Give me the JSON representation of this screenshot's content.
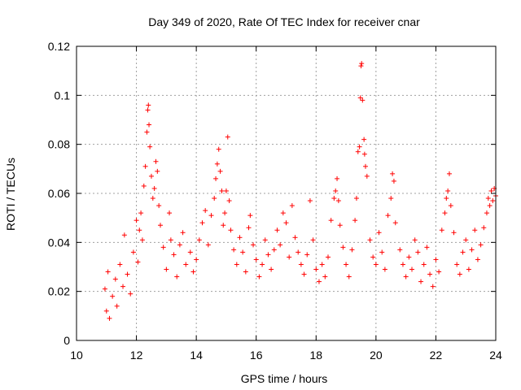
{
  "chart_data": {
    "type": "scatter",
    "title": "Day 349 of 2020, Rate Of TEC Index for receiver cnar",
    "xlabel": "GPS time / hours",
    "ylabel": "ROTI / TECUs",
    "xlim": [
      10,
      24
    ],
    "ylim": [
      0,
      0.12
    ],
    "x_ticks": [
      "10",
      "12",
      "14",
      "16",
      "18",
      "20",
      "22",
      "24"
    ],
    "y_ticks": [
      "0",
      "0.02",
      "0.04",
      "0.06",
      "0.08",
      "0.1",
      "0.12"
    ],
    "grid": true,
    "marker": "+",
    "color": "#ff0000",
    "series": [
      {
        "points": [
          [
            10.95,
            0.021
          ],
          [
            11.0,
            0.012
          ],
          [
            11.05,
            0.028
          ],
          [
            11.1,
            0.009
          ],
          [
            11.2,
            0.018
          ],
          [
            11.3,
            0.025
          ],
          [
            11.35,
            0.014
          ],
          [
            11.45,
            0.031
          ],
          [
            11.55,
            0.022
          ],
          [
            11.6,
            0.043
          ],
          [
            11.7,
            0.027
          ],
          [
            11.8,
            0.019
          ],
          [
            11.9,
            0.036
          ],
          [
            12.0,
            0.049
          ],
          [
            12.05,
            0.032
          ],
          [
            12.1,
            0.045
          ],
          [
            12.15,
            0.052
          ],
          [
            12.2,
            0.041
          ],
          [
            12.25,
            0.063
          ],
          [
            12.3,
            0.071
          ],
          [
            12.35,
            0.085
          ],
          [
            12.38,
            0.094
          ],
          [
            12.4,
            0.096
          ],
          [
            12.42,
            0.088
          ],
          [
            12.45,
            0.079
          ],
          [
            12.5,
            0.067
          ],
          [
            12.55,
            0.058
          ],
          [
            12.6,
            0.062
          ],
          [
            12.65,
            0.073
          ],
          [
            12.7,
            0.069
          ],
          [
            12.75,
            0.055
          ],
          [
            12.8,
            0.047
          ],
          [
            12.9,
            0.038
          ],
          [
            13.0,
            0.029
          ],
          [
            13.1,
            0.052
          ],
          [
            13.15,
            0.041
          ],
          [
            13.25,
            0.035
          ],
          [
            13.35,
            0.026
          ],
          [
            13.45,
            0.039
          ],
          [
            13.55,
            0.044
          ],
          [
            13.65,
            0.031
          ],
          [
            13.8,
            0.036
          ],
          [
            13.9,
            0.028
          ],
          [
            14.0,
            0.033
          ],
          [
            14.1,
            0.041
          ],
          [
            14.2,
            0.048
          ],
          [
            14.3,
            0.053
          ],
          [
            14.4,
            0.039
          ],
          [
            14.5,
            0.051
          ],
          [
            14.6,
            0.058
          ],
          [
            14.65,
            0.066
          ],
          [
            14.7,
            0.072
          ],
          [
            14.75,
            0.078
          ],
          [
            14.8,
            0.069
          ],
          [
            14.85,
            0.061
          ],
          [
            14.9,
            0.047
          ],
          [
            14.95,
            0.052
          ],
          [
            15.0,
            0.061
          ],
          [
            15.05,
            0.083
          ],
          [
            15.1,
            0.057
          ],
          [
            15.15,
            0.045
          ],
          [
            15.25,
            0.037
          ],
          [
            15.35,
            0.031
          ],
          [
            15.45,
            0.042
          ],
          [
            15.55,
            0.036
          ],
          [
            15.65,
            0.028
          ],
          [
            15.75,
            0.046
          ],
          [
            15.8,
            0.051
          ],
          [
            15.9,
            0.039
          ],
          [
            16.0,
            0.033
          ],
          [
            16.1,
            0.026
          ],
          [
            16.2,
            0.031
          ],
          [
            16.3,
            0.041
          ],
          [
            16.4,
            0.035
          ],
          [
            16.5,
            0.029
          ],
          [
            16.6,
            0.037
          ],
          [
            16.7,
            0.045
          ],
          [
            16.8,
            0.039
          ],
          [
            16.9,
            0.052
          ],
          [
            17.0,
            0.048
          ],
          [
            17.1,
            0.034
          ],
          [
            17.2,
            0.055
          ],
          [
            17.3,
            0.042
          ],
          [
            17.4,
            0.036
          ],
          [
            17.5,
            0.031
          ],
          [
            17.6,
            0.027
          ],
          [
            17.7,
            0.035
          ],
          [
            17.8,
            0.057
          ],
          [
            17.9,
            0.041
          ],
          [
            18.0,
            0.029
          ],
          [
            18.1,
            0.024
          ],
          [
            18.2,
            0.031
          ],
          [
            18.3,
            0.026
          ],
          [
            18.4,
            0.034
          ],
          [
            18.5,
            0.049
          ],
          [
            18.6,
            0.058
          ],
          [
            18.65,
            0.061
          ],
          [
            18.7,
            0.066
          ],
          [
            18.75,
            0.057
          ],
          [
            18.8,
            0.047
          ],
          [
            18.9,
            0.038
          ],
          [
            19.0,
            0.031
          ],
          [
            19.1,
            0.026
          ],
          [
            19.2,
            0.037
          ],
          [
            19.3,
            0.049
          ],
          [
            19.35,
            0.058
          ],
          [
            19.4,
            0.077
          ],
          [
            19.45,
            0.079
          ],
          [
            19.48,
            0.099
          ],
          [
            19.5,
            0.112
          ],
          [
            19.52,
            0.113
          ],
          [
            19.55,
            0.098
          ],
          [
            19.6,
            0.082
          ],
          [
            19.62,
            0.076
          ],
          [
            19.65,
            0.071
          ],
          [
            19.7,
            0.067
          ],
          [
            19.8,
            0.041
          ],
          [
            19.9,
            0.034
          ],
          [
            20.0,
            0.031
          ],
          [
            20.1,
            0.044
          ],
          [
            20.2,
            0.036
          ],
          [
            20.3,
            0.029
          ],
          [
            20.4,
            0.051
          ],
          [
            20.5,
            0.058
          ],
          [
            20.55,
            0.068
          ],
          [
            20.6,
            0.065
          ],
          [
            20.65,
            0.048
          ],
          [
            20.8,
            0.037
          ],
          [
            20.9,
            0.031
          ],
          [
            21.0,
            0.026
          ],
          [
            21.1,
            0.034
          ],
          [
            21.2,
            0.029
          ],
          [
            21.3,
            0.041
          ],
          [
            21.4,
            0.036
          ],
          [
            21.5,
            0.024
          ],
          [
            21.6,
            0.031
          ],
          [
            21.7,
            0.038
          ],
          [
            21.8,
            0.027
          ],
          [
            21.9,
            0.022
          ],
          [
            22.0,
            0.033
          ],
          [
            22.1,
            0.028
          ],
          [
            22.2,
            0.045
          ],
          [
            22.3,
            0.052
          ],
          [
            22.35,
            0.058
          ],
          [
            22.4,
            0.061
          ],
          [
            22.45,
            0.068
          ],
          [
            22.5,
            0.055
          ],
          [
            22.6,
            0.044
          ],
          [
            22.7,
            0.031
          ],
          [
            22.8,
            0.027
          ],
          [
            22.9,
            0.036
          ],
          [
            23.0,
            0.041
          ],
          [
            23.1,
            0.029
          ],
          [
            23.2,
            0.037
          ],
          [
            23.3,
            0.045
          ],
          [
            23.4,
            0.033
          ],
          [
            23.5,
            0.039
          ],
          [
            23.6,
            0.046
          ],
          [
            23.7,
            0.052
          ],
          [
            23.75,
            0.058
          ],
          [
            23.8,
            0.055
          ],
          [
            23.85,
            0.061
          ],
          [
            23.9,
            0.057
          ],
          [
            23.95,
            0.062
          ],
          [
            24.0,
            0.059
          ]
        ]
      }
    ]
  }
}
